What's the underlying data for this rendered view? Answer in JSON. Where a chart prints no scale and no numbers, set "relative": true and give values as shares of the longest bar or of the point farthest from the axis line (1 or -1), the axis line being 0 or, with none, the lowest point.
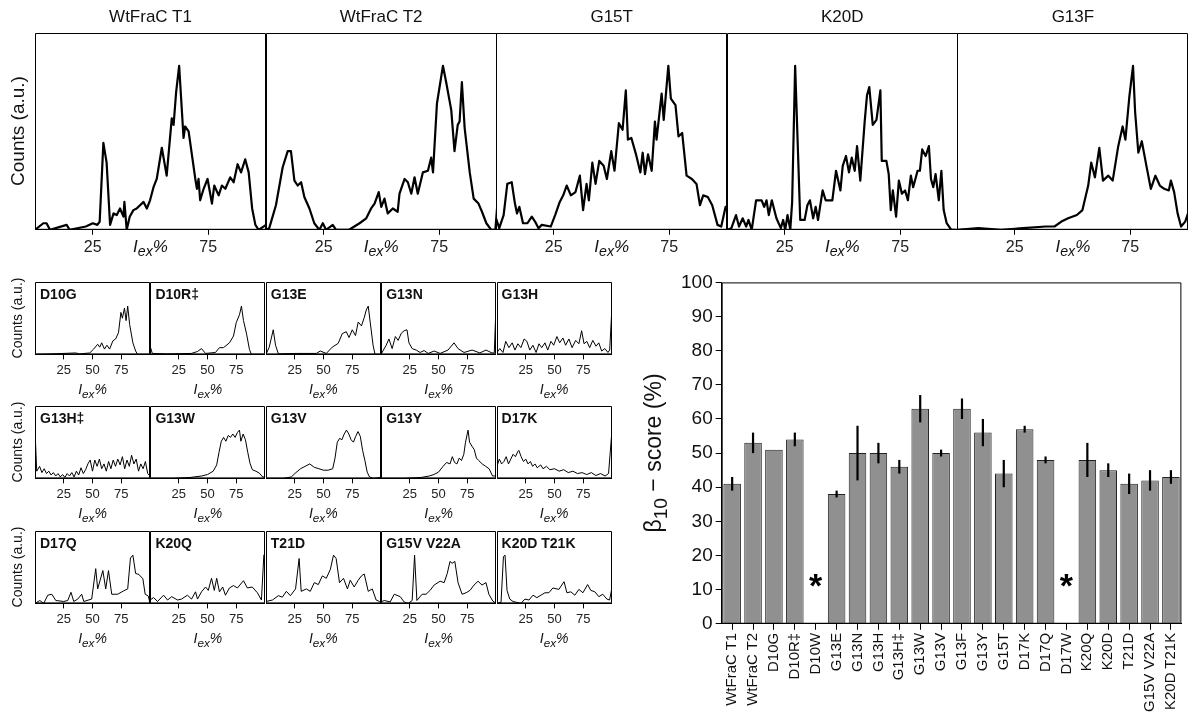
{
  "chart_data": [
    {
      "type": "line",
      "title": "WtFraC T1",
      "xlabel": "I$_{ex}$%",
      "ylabel": "Counts (a.u.)",
      "relative": true,
      "color": "#000000",
      "xlim": [
        0,
        100
      ],
      "xticks": [
        25,
        75
      ],
      "tick_labels": "x",
      "x": [
        0,
        3.6,
        5,
        6.5,
        13.7,
        15,
        22,
        25,
        27,
        28,
        29.6,
        31,
        32.5,
        34,
        35.4,
        36.8,
        38.3,
        38.7,
        39.7,
        41,
        42.6,
        44,
        47,
        48.4,
        49.8,
        51.3,
        52.7,
        54.9,
        57,
        59.2,
        60,
        61.1,
        62.4,
        64.3,
        65,
        66.5,
        67.9,
        69.4,
        70.1,
        70.8,
        71.5,
        73,
        74.7,
        76.6,
        77.6,
        79.5,
        80.9,
        82.4,
        84.5,
        86,
        87.7,
        89.2,
        91,
        92.5,
        94,
        95.4,
        96.8,
        100
      ],
      "values": [
        0,
        0.04,
        0.04,
        0,
        0.03,
        0,
        0.02,
        0.04,
        0.03,
        0.05,
        0.53,
        0.41,
        0.03,
        0.1,
        0.09,
        0.13,
        0.08,
        0.17,
        0,
        0.08,
        0.12,
        0.13,
        0.17,
        0.13,
        0.18,
        0.26,
        0.31,
        0.5,
        0.33,
        0.68,
        0.64,
        0.84,
        1,
        0.56,
        0.63,
        0.6,
        0.46,
        0.31,
        0.25,
        0.31,
        0.18,
        0.25,
        0.31,
        0.16,
        0.27,
        0.21,
        0.27,
        0.25,
        0.32,
        0.29,
        0.4,
        0.35,
        0.43,
        0.35,
        0.13,
        0.03,
        0,
        0.03
      ]
    },
    {
      "type": "line",
      "title": "WtFraC T2",
      "xlabel": "I$_{ex}$%",
      "relative": true,
      "color": "#000000",
      "xlim": [
        0,
        100
      ],
      "xticks": [
        25,
        75
      ],
      "tick_labels": "x",
      "x": [
        0,
        1.4,
        4.3,
        7.2,
        9.4,
        10.8,
        12.3,
        13.7,
        15.2,
        16.6,
        18.8,
        20.9,
        23.1,
        24.6,
        26,
        28.9,
        30.3,
        36,
        40.5,
        43.4,
        45.5,
        47,
        48.8,
        49.9,
        51.3,
        52.7,
        54.9,
        57,
        57.8,
        60,
        61.4,
        62.9,
        64.3,
        65.7,
        67.9,
        70.1,
        71.5,
        72.3,
        74,
        76.6,
        78,
        80.2,
        81.6,
        83,
        83.8,
        84.8,
        86,
        88.2,
        89.9,
        92,
        93.5,
        95.4,
        97.5,
        99.3,
        100
      ],
      "values": [
        0,
        0.01,
        0.15,
        0.38,
        0.48,
        0.48,
        0.3,
        0.27,
        0.29,
        0.2,
        0.13,
        0.04,
        0,
        0.04,
        0,
        0.03,
        0,
        0,
        0.04,
        0.07,
        0.13,
        0.16,
        0.23,
        0.14,
        0.19,
        0.1,
        0.13,
        0.11,
        0.22,
        0.31,
        0.29,
        0.22,
        0.32,
        0.22,
        0.35,
        0.36,
        0.44,
        0.35,
        0.77,
        1,
        0.9,
        0.73,
        0.48,
        0.64,
        0.66,
        0.9,
        0.62,
        0.35,
        0.19,
        0.16,
        0.11,
        0.04,
        0,
        0,
        0.13
      ]
    },
    {
      "type": "line",
      "title": "G15T",
      "xlabel": "I$_{ex}$%",
      "relative": true,
      "color": "#000000",
      "xlim": [
        0,
        100
      ],
      "xticks": [
        25,
        75
      ],
      "tick_labels": "x",
      "x": [
        0,
        1.4,
        3.3,
        4.9,
        6.8,
        8.2,
        9.1,
        10.1,
        11.7,
        13.6,
        15.5,
        16.9,
        18.4,
        19.8,
        23.7,
        25.6,
        27.6,
        29.1,
        30.6,
        32.4,
        34.4,
        36.3,
        37.7,
        39.2,
        40.2,
        41.7,
        43.1,
        44.7,
        46.6,
        48,
        49.9,
        51.3,
        53.2,
        54.8,
        56.2,
        57.1,
        58.6,
        60.6,
        62.5,
        63.5,
        64.5,
        65.8,
        67.4,
        68.8,
        69.5,
        71.7,
        72.6,
        74.6,
        75.7,
        77.7,
        79,
        80.6,
        82.5,
        84.8,
        86.8,
        88.3,
        89.7,
        91.7,
        93.6,
        95.9,
        97.5,
        99.4
      ],
      "values": [
        0.07,
        0.01,
        0.09,
        0.28,
        0.29,
        0.16,
        0.1,
        0.14,
        0.04,
        0.04,
        0.08,
        0.05,
        0.01,
        0.03,
        0.02,
        0.09,
        0.17,
        0.21,
        0.27,
        0.21,
        0.23,
        0.33,
        0.12,
        0.28,
        0.18,
        0.41,
        0.28,
        0.42,
        0.39,
        0.31,
        0.48,
        0.36,
        0.65,
        0.61,
        0.85,
        0.55,
        0.56,
        0.46,
        0.35,
        0.47,
        0.34,
        0.46,
        0.36,
        0.66,
        0.55,
        0.83,
        0.67,
        1,
        0.8,
        0.76,
        0.57,
        0.59,
        0.33,
        0.31,
        0.28,
        0.15,
        0.21,
        0.2,
        0.15,
        0.03,
        0.02,
        0.14
      ]
    },
    {
      "type": "line",
      "title": "K20D",
      "xlabel": "I$_{ex}$%",
      "relative": true,
      "color": "#000000",
      "xlim": [
        0,
        100
      ],
      "xticks": [
        25,
        75
      ],
      "tick_labels": "x",
      "x": [
        0,
        1.9,
        3.9,
        5.2,
        6.8,
        8.3,
        9.3,
        10.7,
        12.6,
        15,
        16.1,
        17.1,
        18.1,
        19.4,
        21.4,
        23.3,
        24.3,
        25.2,
        26.2,
        27.4,
        28.2,
        29.5,
        31.7,
        33.6,
        34.8,
        35.9,
        37.3,
        38.4,
        39.4,
        41.4,
        42.7,
        45.6,
        47.2,
        49.1,
        50.1,
        51.5,
        52.8,
        54,
        55.3,
        56.3,
        57.7,
        59.6,
        60.6,
        61.6,
        63.1,
        64.7,
        66.4,
        67,
        69,
        70,
        70.9,
        71.8,
        73.2,
        74.4,
        75.7,
        77.1,
        78.3,
        79.6,
        80.6,
        82.5,
        83.5,
        84.5,
        86,
        87.4,
        88.3,
        89.3,
        90.3,
        91.7,
        92.8,
        93.8,
        95.1,
        97.1,
        99
      ],
      "values": [
        0,
        0.01,
        0.09,
        0.02,
        0.07,
        0.02,
        0.06,
        0,
        0.18,
        0.18,
        0.14,
        0.18,
        0.09,
        0.18,
        0.07,
        0.01,
        0.06,
        0,
        0.09,
        0,
        0.17,
        1,
        0.06,
        0.06,
        0.15,
        0.18,
        0.07,
        0.14,
        0.06,
        0.24,
        0.18,
        0.18,
        0.36,
        0.24,
        0.39,
        0.45,
        0.35,
        0.44,
        0.36,
        0.51,
        0.3,
        0.66,
        0.82,
        0.87,
        0.64,
        0.67,
        0.85,
        0.42,
        0.42,
        0.34,
        0.12,
        0.24,
        0.08,
        0.3,
        0.22,
        0.24,
        0.18,
        0.33,
        0.26,
        0.36,
        0.36,
        0.49,
        0.45,
        0.51,
        0.31,
        0.26,
        0.34,
        0.18,
        0.36,
        0.12,
        0.04,
        0,
        0
      ]
    },
    {
      "type": "line",
      "title": "G13F",
      "xlabel": "I$_{ex}$%",
      "relative": true,
      "color": "#000000",
      "xlim": [
        0,
        100
      ],
      "xticks": [
        25,
        75
      ],
      "tick_labels": "x",
      "x": [
        0,
        9.3,
        19,
        28.7,
        38.4,
        42.2,
        45.2,
        48.1,
        51.9,
        54.3,
        56.8,
        58.1,
        59.7,
        61.6,
        63.2,
        65.5,
        67.4,
        69.8,
        71.7,
        72.9,
        74.6,
        76.2,
        77.1,
        78.5,
        80,
        82,
        83.9,
        85.9,
        87.8,
        89.7,
        91.7,
        92.6,
        94,
        95.5,
        97,
        98.8,
        100
      ],
      "values": [
        0,
        0.01,
        0,
        0.01,
        0.02,
        0.02,
        0.05,
        0.07,
        0.09,
        0.12,
        0.27,
        0.41,
        0.32,
        0.5,
        0.3,
        0.33,
        0.3,
        0.51,
        0.63,
        0.55,
        0.81,
        1,
        0.72,
        0.47,
        0.54,
        0.39,
        0.25,
        0.33,
        0.27,
        0.25,
        0.24,
        0.3,
        0.23,
        0.1,
        0.02,
        0.05,
        0.1
      ]
    },
    {
      "type": "line",
      "title": "D10G",
      "xlabel": "I$_{ex}$%",
      "ylabel": "Counts (a.u.)",
      "relative": true,
      "color": "#000000",
      "xlim": [
        0,
        100
      ],
      "xticks": [
        25,
        50,
        75
      ],
      "tick_labels": "x",
      "x": [
        0,
        14.6,
        35.4,
        38.9,
        47.6,
        51,
        54.5,
        56.3,
        58,
        60.4,
        62.5,
        64.9,
        67.7,
        70.1,
        72.6,
        74.7,
        76,
        77.8,
        79.2,
        80.6,
        82.3,
        85.1,
        87.5,
        89.2,
        100
      ],
      "values": [
        0,
        0.01,
        0.03,
        0.01,
        0.03,
        0.11,
        0.21,
        0.15,
        0.24,
        0.11,
        0.19,
        0.11,
        0.28,
        0.32,
        0.45,
        0.87,
        0.75,
        0.96,
        0.7,
        1,
        0.62,
        0.24,
        0.07,
        0,
        0
      ]
    },
    {
      "type": "line",
      "title": "D10R‡",
      "xlabel": "I$_{ex}$%",
      "relative": true,
      "color": "#000000",
      "xlim": [
        0,
        100
      ],
      "xticks": [
        25,
        50,
        75
      ],
      "tick_labels": "x",
      "x": [
        0,
        2,
        15.3,
        36,
        41.3,
        44.8,
        48.3,
        56.9,
        60.4,
        63.9,
        69.1,
        72.6,
        75,
        77.8,
        79.5,
        81.3,
        84,
        86.5,
        88.2,
        100
      ],
      "values": [
        0.18,
        0.02,
        0.01,
        0.02,
        0.06,
        0.12,
        0.02,
        0.04,
        0.14,
        0.14,
        0.24,
        0.38,
        0.66,
        0.82,
        1,
        0.7,
        0.42,
        0.1,
        0,
        0
      ]
    },
    {
      "type": "line",
      "title": "G13E",
      "xlabel": "I$_{ex}$%",
      "relative": true,
      "color": "#000000",
      "xlim": [
        0,
        100
      ],
      "xticks": [
        25,
        50,
        75
      ],
      "tick_labels": "x",
      "x": [
        0,
        2.8,
        6.3,
        8.3,
        10.8,
        26.4,
        43.8,
        47.2,
        52.4,
        57.6,
        62.8,
        66.3,
        69.8,
        72.2,
        75,
        77.8,
        80.2,
        83,
        85.4,
        87.2,
        88.9,
        90.6,
        93.1,
        94.8,
        100
      ],
      "values": [
        0,
        0.15,
        0.51,
        0.19,
        0.01,
        0.02,
        0.02,
        0.07,
        0.02,
        0.15,
        0.23,
        0.43,
        0.47,
        0.35,
        0.51,
        0.39,
        0.67,
        0.59,
        0.76,
        0.92,
        1,
        0.67,
        0.19,
        0,
        0
      ]
    },
    {
      "type": "line",
      "title": "G13N",
      "xlabel": "I$_{ex}$%",
      "relative": true,
      "color": "#000000",
      "xlim": [
        0,
        100
      ],
      "xticks": [
        25,
        50,
        75
      ],
      "tick_labels": "x",
      "x": [
        0,
        2.1,
        4.5,
        6.9,
        9.7,
        12.5,
        14.9,
        17.7,
        20.1,
        22.6,
        24.3,
        27.1,
        30.6,
        34,
        37.5,
        41,
        46.2,
        51.4,
        58.3,
        63.5,
        67,
        72.2,
        79.2,
        86,
        91.3,
        96.5,
        98.5,
        100
      ],
      "values": [
        0,
        0.09,
        0.19,
        0.32,
        0.12,
        0.37,
        0.29,
        0.44,
        0.49,
        0.51,
        0.24,
        0.12,
        0.09,
        0.04,
        0.08,
        0.02,
        0.07,
        0.02,
        0.09,
        0.24,
        0.12,
        0.04,
        0.09,
        0.03,
        0.09,
        0.03,
        0.03,
        1
      ]
    },
    {
      "type": "line",
      "title": "G13H",
      "xlabel": "I$_{ex}$%",
      "relative": true,
      "color": "#000000",
      "xlim": [
        0,
        100
      ],
      "xticks": [
        25,
        50,
        75
      ],
      "tick_labels": "x",
      "x": [
        0,
        2.4,
        5.2,
        7.6,
        10.4,
        13.2,
        15.6,
        18.1,
        20.8,
        23.6,
        26,
        28.5,
        31.2,
        34,
        36.5,
        38.9,
        41.7,
        44.1,
        46.9,
        49.3,
        52.1,
        54.5,
        57.3,
        59.7,
        62.5,
        65.3,
        68.4,
        71.2,
        73.6,
        75.7,
        78.1,
        80.6,
        83.3,
        86.1,
        88.5,
        91,
        93.8,
        96.5,
        98,
        100
      ],
      "values": [
        0.04,
        0.12,
        0.04,
        0.27,
        0.14,
        0.24,
        0.09,
        0.22,
        0.14,
        0.32,
        0.27,
        0.09,
        0.19,
        0.04,
        0.22,
        0.14,
        0.24,
        0.09,
        0.27,
        0.19,
        0.37,
        0.24,
        0.34,
        0.19,
        0.32,
        0.14,
        0.29,
        0.22,
        0.49,
        0.22,
        0.27,
        0.14,
        0.29,
        0.17,
        0.24,
        0.07,
        0.12,
        0.04,
        0.09,
        1
      ]
    },
    {
      "type": "line",
      "title": "G13H‡",
      "xlabel": "I$_{ex}$%",
      "ylabel": "Counts (a.u.)",
      "relative": true,
      "color": "#000000",
      "xlim": [
        0,
        100
      ],
      "xticks": [
        25,
        50,
        75
      ],
      "tick_labels": "x",
      "x": [
        0,
        1.5,
        4,
        6,
        8,
        10,
        12,
        14,
        16,
        18,
        20,
        22,
        24,
        26,
        28,
        30,
        32,
        34,
        36,
        38,
        40,
        42,
        44,
        46,
        48,
        50,
        52,
        54,
        56,
        58,
        60,
        62,
        64,
        66,
        68,
        70,
        72,
        74,
        76,
        78,
        80,
        82,
        84,
        86,
        88,
        90,
        92,
        94,
        96,
        98,
        100
      ],
      "values": [
        1,
        0.15,
        0.25,
        0.12,
        0.2,
        0.1,
        0.15,
        0.07,
        0.12,
        0.05,
        0.1,
        0.03,
        0.08,
        0.02,
        0.1,
        0.05,
        0.12,
        0.03,
        0.15,
        0.07,
        0.22,
        0.1,
        0.18,
        0.3,
        0.38,
        0.15,
        0.38,
        0.25,
        0.4,
        0.2,
        0.3,
        0.15,
        0.35,
        0.2,
        0.38,
        0.25,
        0.4,
        0.28,
        0.45,
        0.2,
        0.38,
        0.25,
        0.48,
        0.3,
        0.4,
        0.15,
        0.3,
        0.2,
        0.35,
        0.1,
        0.05
      ]
    },
    {
      "type": "line",
      "title": "G13W",
      "xlabel": "I$_{ex}$%",
      "relative": true,
      "color": "#000000",
      "xlim": [
        0,
        100
      ],
      "xticks": [
        25,
        50,
        75
      ],
      "tick_labels": "x",
      "x": [
        0,
        20,
        35,
        45,
        50,
        55,
        58,
        60,
        62,
        64,
        66,
        68,
        70,
        72,
        74,
        76,
        77.8,
        79,
        81,
        83,
        85,
        87,
        89,
        92,
        95,
        98,
        100
      ],
      "values": [
        0,
        0,
        0.02,
        0.05,
        0.08,
        0.15,
        0.28,
        0.54,
        0.77,
        0.85,
        0.77,
        0.89,
        0.85,
        0.92,
        0.85,
        0.95,
        1,
        0.77,
        0.92,
        0.8,
        0.54,
        0.31,
        0.18,
        0.15,
        0.11,
        0.03,
        0.03
      ]
    },
    {
      "type": "line",
      "title": "G13V",
      "xlabel": "I$_{ex}$%",
      "relative": true,
      "color": "#000000",
      "xlim": [
        0,
        100
      ],
      "xticks": [
        25,
        50,
        75
      ],
      "tick_labels": "x",
      "x": [
        0,
        15,
        22,
        26,
        30,
        34,
        38,
        42,
        46,
        50,
        54,
        58,
        60,
        62,
        64,
        66,
        68,
        70,
        72,
        74,
        76,
        78,
        80,
        82,
        84,
        86,
        88,
        90,
        93,
        100
      ],
      "values": [
        0,
        0,
        0.03,
        0.12,
        0.2,
        0.25,
        0.3,
        0.23,
        0.2,
        0.17,
        0.17,
        0.2,
        0.42,
        0.75,
        0.83,
        0.8,
        0.92,
        1,
        0.92,
        0.8,
        0.75,
        0.87,
        0.97,
        0.87,
        0.58,
        0.37,
        0.13,
        0.03,
        0,
        0.02
      ]
    },
    {
      "type": "line",
      "title": "G13Y",
      "xlabel": "I$_{ex}$%",
      "relative": true,
      "color": "#000000",
      "xlim": [
        0,
        100
      ],
      "xticks": [
        25,
        50,
        75
      ],
      "tick_labels": "x",
      "x": [
        0,
        20,
        35,
        42,
        46,
        50,
        54,
        57,
        60,
        62,
        64,
        66,
        68,
        70,
        72,
        73.5,
        75.7,
        77,
        79,
        81,
        83,
        85,
        88,
        91,
        94,
        97,
        100
      ],
      "values": [
        0,
        0,
        0.02,
        0.05,
        0.08,
        0.13,
        0.25,
        0.33,
        0.3,
        0.45,
        0.33,
        0.3,
        0.42,
        0.37,
        0.5,
        0.75,
        1,
        0.75,
        0.67,
        0.6,
        0.42,
        0.37,
        0.3,
        0.25,
        0.2,
        0.05,
        0.05
      ]
    },
    {
      "type": "line",
      "title": "D17K",
      "xlabel": "I$_{ex}$%",
      "relative": true,
      "color": "#000000",
      "xlim": [
        0,
        100
      ],
      "xticks": [
        25,
        50,
        75
      ],
      "tick_labels": "x",
      "x": [
        0,
        2,
        4,
        6,
        8,
        10,
        12,
        14,
        16,
        18,
        19,
        21,
        23,
        25,
        27,
        29,
        31,
        33,
        35,
        38,
        40,
        43,
        46,
        50,
        54,
        58,
        62,
        66,
        70,
        74,
        78,
        82,
        86,
        90,
        94,
        97,
        100
      ],
      "values": [
        0.25,
        0.4,
        0.3,
        0.35,
        0.45,
        0.3,
        0.4,
        0.5,
        0.45,
        0.55,
        0.58,
        0.45,
        0.35,
        0.4,
        0.3,
        0.35,
        0.25,
        0.3,
        0.22,
        0.28,
        0.2,
        0.25,
        0.18,
        0.2,
        0.15,
        0.18,
        0.12,
        0.15,
        0.1,
        0.12,
        0.08,
        0.12,
        0.06,
        0.1,
        0.05,
        0.1,
        1
      ]
    },
    {
      "type": "line",
      "title": "D17Q",
      "xlabel": "I$_{ex}$%",
      "ylabel": "Counts (a.u.)",
      "relative": true,
      "color": "#000000",
      "xlim": [
        0,
        100
      ],
      "xticks": [
        25,
        50,
        75
      ],
      "tick_labels": "x",
      "x": [
        0,
        4.2,
        7.6,
        11.1,
        14.6,
        18.1,
        25,
        28.5,
        31.3,
        33.7,
        37.2,
        40.6,
        42.4,
        49.3,
        52.8,
        54.5,
        59,
        61.5,
        63.9,
        66.7,
        71.9,
        77.1,
        80.6,
        83,
        85.1,
        87.5,
        90.3,
        93.8,
        95.8,
        98.6,
        100
      ],
      "values": [
        0,
        0.06,
        0,
        0.17,
        0.19,
        0.06,
        0.04,
        0.06,
        0.23,
        0.04,
        0.09,
        0.19,
        0.04,
        0.09,
        0.72,
        0.3,
        0.68,
        0.3,
        0.68,
        0.19,
        0.19,
        0.26,
        0.3,
        0.94,
        1,
        0.62,
        0.6,
        0.51,
        0.19,
        0.15,
        0
      ]
    },
    {
      "type": "line",
      "title": "K20Q",
      "xlabel": "I$_{ex}$%",
      "relative": true,
      "color": "#000000",
      "xlim": [
        0,
        100
      ],
      "xticks": [
        25,
        50,
        75
      ],
      "tick_labels": "x",
      "x": [
        0,
        3.1,
        6.6,
        11.8,
        15.3,
        18.8,
        24,
        27.4,
        32.6,
        36.1,
        39.6,
        41.3,
        44.8,
        48.3,
        50.7,
        53.5,
        55.9,
        58,
        60.4,
        63.2,
        65.6,
        69.1,
        72.6,
        76,
        81.3,
        84.7,
        88.9,
        93.4,
        96.9,
        99
      ],
      "values": [
        0.07,
        0.12,
        0.04,
        0.17,
        0.07,
        0.14,
        0.07,
        0.09,
        0.17,
        0.09,
        0.24,
        0.09,
        0.24,
        0.34,
        0.27,
        0.52,
        0.27,
        0.52,
        0.24,
        0.34,
        0.17,
        0.32,
        0.37,
        0.32,
        0.47,
        0.32,
        0.34,
        0.22,
        0.07,
        1
      ]
    },
    {
      "type": "line",
      "title": "T21D",
      "xlabel": "I$_{ex}$%",
      "relative": true,
      "color": "#000000",
      "xlim": [
        0,
        100
      ],
      "xticks": [
        25,
        50,
        75
      ],
      "tick_labels": "x",
      "x": [
        0,
        5.6,
        10.8,
        14.2,
        17.7,
        21.2,
        25.7,
        28.8,
        30.6,
        35.1,
        38.5,
        42,
        45.5,
        49,
        52.4,
        55.9,
        58.7,
        61,
        63.9,
        67.4,
        70.8,
        73.3,
        76.7,
        80.2,
        83,
        85.4,
        88.9,
        92.4,
        95.8,
        98.6,
        100
      ],
      "values": [
        0.04,
        0.07,
        0.16,
        0.13,
        0.25,
        0.16,
        0.3,
        0.93,
        0.25,
        0.3,
        0.25,
        0.43,
        0.39,
        0.57,
        0.52,
        0.7,
        1,
        0.93,
        0.43,
        0.52,
        0.3,
        0.48,
        0.34,
        0.48,
        0.57,
        0.61,
        0.25,
        0.3,
        0.07,
        0.04,
        0
      ]
    },
    {
      "type": "line",
      "title": "G15V V22A",
      "xlabel": "I$_{ex}$%",
      "relative": true,
      "color": "#000000",
      "xlim": [
        0,
        100
      ],
      "xticks": [
        25,
        50,
        75
      ],
      "tick_labels": "x",
      "x": [
        0,
        2.8,
        8,
        11.5,
        16.7,
        20.1,
        23.6,
        27.1,
        29.2,
        31.2,
        35.8,
        39.2,
        42.7,
        46.2,
        51.4,
        54.9,
        57.6,
        60,
        61.8,
        64.2,
        67,
        70.5,
        74,
        77.4,
        80.9,
        84.4,
        87.8,
        91.3,
        93.8,
        97.2,
        100
      ],
      "values": [
        0.03,
        0.06,
        0.03,
        0.19,
        0.14,
        0.03,
        0,
        0.06,
        1,
        0.06,
        0.19,
        0.19,
        0.27,
        0.38,
        0.46,
        0.43,
        0.62,
        0.87,
        0.83,
        0.87,
        0.43,
        0.19,
        0.22,
        0.27,
        0.38,
        0.46,
        0.38,
        0.43,
        0.19,
        0.05,
        0
      ]
    },
    {
      "type": "line",
      "title": "K20D T21K",
      "xlabel": "I$_{ex}$%",
      "relative": true,
      "color": "#000000",
      "xlim": [
        0,
        100
      ],
      "xticks": [
        25,
        50,
        75
      ],
      "tick_labels": "x",
      "x": [
        0,
        3.5,
        5.6,
        7,
        8.7,
        11.1,
        13.9,
        17.4,
        20.8,
        24.3,
        27.8,
        31.3,
        34.7,
        38.2,
        41.7,
        45.1,
        48.6,
        53.8,
        58.3,
        60.8,
        64.2,
        67.7,
        71.2,
        74.7,
        78.8,
        81.6,
        85.1,
        88.5,
        92,
        95.5,
        97.9,
        99.7
      ],
      "values": [
        0,
        0.02,
        0.97,
        1,
        0.27,
        0.09,
        0.04,
        0.02,
        0,
        0.09,
        0.07,
        0.17,
        0.12,
        0.17,
        0.22,
        0.22,
        0.32,
        0.29,
        0.45,
        0.22,
        0.24,
        0.17,
        0.29,
        0.22,
        0.39,
        0.27,
        0.24,
        0.14,
        0.19,
        0.09,
        0.07,
        0.29
      ]
    },
    {
      "type": "bar",
      "ylabel": "β$_{10}$ − score (%)",
      "color": "#909090",
      "ylim": [
        0,
        100
      ],
      "yticks": [
        0,
        10,
        20,
        30,
        40,
        50,
        60,
        70,
        80,
        90,
        100
      ],
      "categories": [
        "WtFraC T1",
        "WtFraC T2",
        "D10G",
        "D10R‡",
        "D10W",
        "G13E",
        "G13N",
        "G13H",
        "G13H‡",
        "G13W",
        "G13V",
        "G13F",
        "G13Y",
        "G15T",
        "D17K",
        "D17Q",
        "D17W",
        "K20Q",
        "K20D",
        "T21D",
        "G15V V22A",
        "K20D T21K"
      ],
      "values": [
        41,
        53,
        51,
        54,
        null,
        38,
        50,
        50,
        46,
        63,
        50,
        63,
        56,
        44,
        57,
        48,
        null,
        48,
        45,
        41,
        42,
        43
      ],
      "errors": [
        2,
        3,
        null,
        2,
        null,
        1,
        8,
        3,
        2,
        4,
        1,
        3,
        4,
        4,
        1,
        1,
        null,
        5,
        2,
        3,
        3,
        2
      ],
      "annotations": [
        "*",
        "*"
      ]
    }
  ]
}
